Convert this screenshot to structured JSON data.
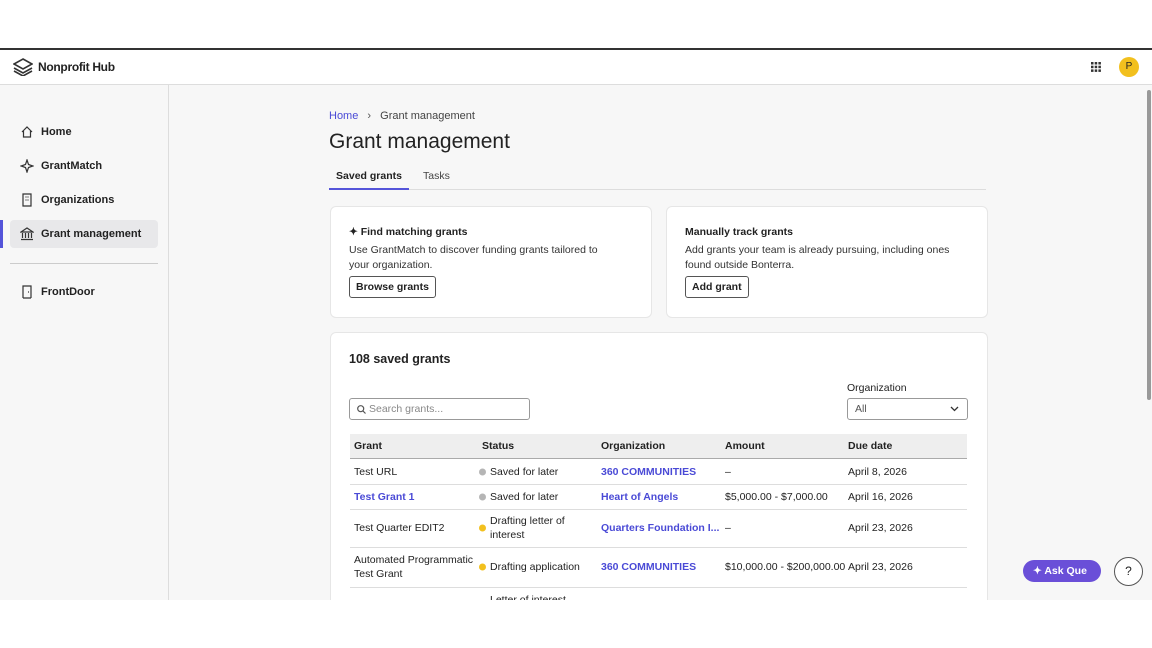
{
  "header": {
    "brand": "Nonprofit Hub",
    "avatar": "P"
  },
  "nav": [
    "Home",
    "GrantMatch",
    "Organizations",
    "Grant management",
    "FrontDoor"
  ],
  "nav_active": 3,
  "breadcrumb": [
    "Home",
    "Grant management"
  ],
  "page_title": "Grant management",
  "tabs": [
    "Saved grants",
    "Tasks"
  ],
  "cards": [
    {
      "title": "Find matching grants",
      "text": "Use GrantMatch to discover funding grants tailored to your organization.",
      "button": "Browse grants"
    },
    {
      "title": "Manually track grants",
      "text": "Add grants your team is already pursuing, including ones found outside Bonterra.",
      "button": "Add grant"
    }
  ],
  "list": {
    "title": "108 saved grants",
    "search_placeholder": "Search grants...",
    "filter_label": "Organization",
    "filter_value": "All",
    "columns": [
      "Grant",
      "Status",
      "Organization",
      "Amount",
      "Due date"
    ],
    "rows": [
      {
        "grant": "Test URL",
        "status": "Saved for later",
        "dot": "#b5b5b5",
        "organization": "360 COMMUNITIES",
        "amount": "–",
        "due": "April 8, 2026"
      },
      {
        "grant": "Test Grant 1",
        "grant_link": true,
        "status": "Saved for later",
        "dot": "#b5b5b5",
        "organization": "Heart of Angels",
        "amount": "$5,000.00 - $7,000.00",
        "due": "April 16, 2026"
      },
      {
        "grant": "Test Quarter EDIT2",
        "status": "Drafting letter of interest",
        "dot": "#f2c01e",
        "organization": "Quarters Foundation I...",
        "amount": "–",
        "due": "April 23, 2026"
      },
      {
        "grant": "Automated Programmatic Test Grant",
        "status": "Drafting application",
        "dot": "#f2c01e",
        "organization": "360 COMMUNITIES",
        "amount": "$10,000.00 - $200,000.00",
        "due": "April 23, 2026"
      },
      {
        "status": "Letter of interest"
      }
    ]
  },
  "ask_button": "Ask Que",
  "help": "?"
}
